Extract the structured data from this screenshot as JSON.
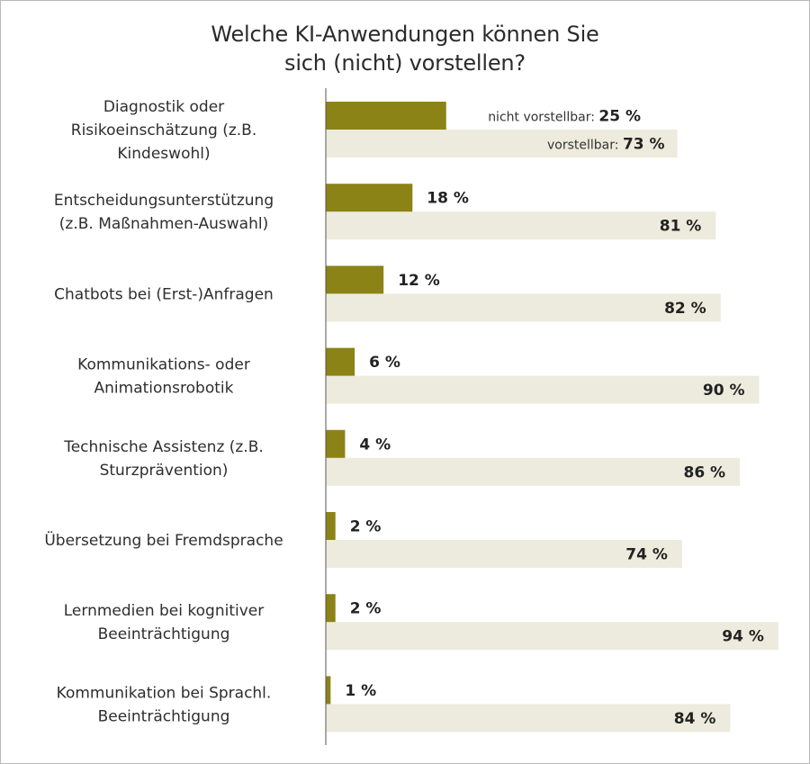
{
  "chart_data": {
    "type": "bar",
    "orientation": "horizontal",
    "title": "Welche KI-Anwendungen können Sie sich (nicht) vorstellen?",
    "title_lines": [
      "Welche KI-Anwendungen können Sie",
      "sich (nicht) vorstellen?"
    ],
    "categories": [
      [
        "Diagnostik oder",
        "Risikoeinschätzung (z.B.",
        "Kindeswohl)"
      ],
      [
        "Entscheidungsunterstützung",
        "(z.B. Maßnahmen-Auswahl)"
      ],
      [
        "Chatbots bei (Erst-)Anfragen"
      ],
      [
        "Kommunikations- oder",
        "Animationsrobotik"
      ],
      [
        "Technische Assistenz (z.B.",
        "Sturzprävention)"
      ],
      [
        "Übersetzung bei Fremdsprache"
      ],
      [
        "Lernmedien bei kognitiver",
        "Beeinträchtigung"
      ],
      [
        "Kommunikation bei Sprachl.",
        "Beeinträchtigung"
      ]
    ],
    "series": [
      {
        "name": "nicht vorstellbar",
        "values": [
          25,
          18,
          12,
          6,
          4,
          2,
          2,
          1
        ],
        "labels": [
          "25 %",
          "18 %",
          "12 %",
          "6 %",
          "4 %",
          "2 %",
          "2 %",
          "1 %"
        ],
        "color": "#8b8316"
      },
      {
        "name": "vorstellbar",
        "values": [
          73,
          81,
          82,
          90,
          86,
          74,
          94,
          84
        ],
        "labels": [
          "73 %",
          "81 %",
          "82 %",
          "90 %",
          "86 %",
          "74 %",
          "94 %",
          "84 %"
        ],
        "color": "#ecebdd"
      }
    ],
    "legend_prefix_on_first_row": true,
    "xlim": [
      0,
      100
    ],
    "axis_color": "#555555",
    "grid": false
  }
}
